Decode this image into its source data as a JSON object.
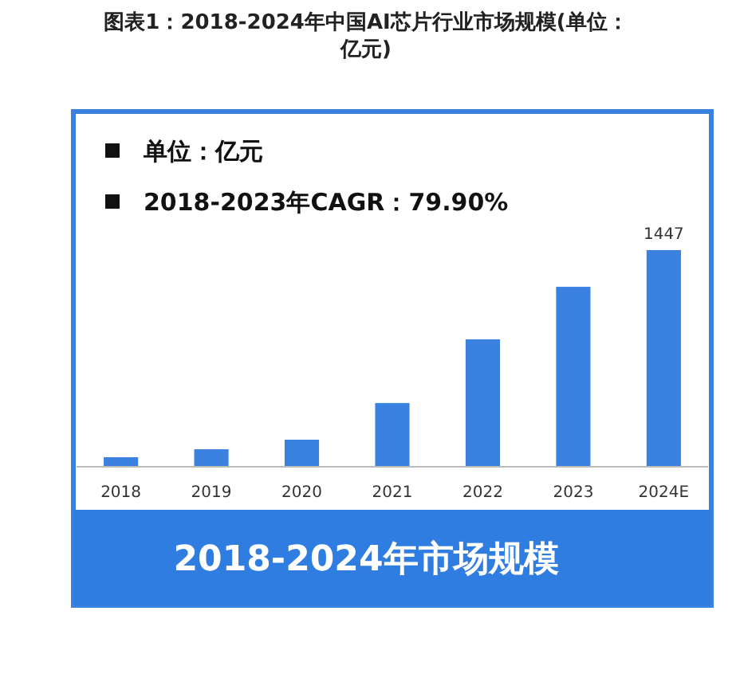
{
  "chart_data": {
    "type": "bar",
    "title": "图表1：2018-2024年中国AI芯片行业市场规模(单位：亿元)",
    "subtitle": "2018-2024年市场规模",
    "categories": [
      "2018",
      "2019",
      "2020",
      "2021",
      "2022",
      "2023",
      "2024E"
    ],
    "values": [
      64,
      117,
      181,
      426,
      851,
      1202,
      1447
    ],
    "value_labels": [
      null,
      null,
      null,
      null,
      null,
      null,
      "1447"
    ],
    "color": "#3b82e0",
    "annotations": [
      "单位：亿元",
      "2018-2023年CAGR：79.90%"
    ]
  }
}
